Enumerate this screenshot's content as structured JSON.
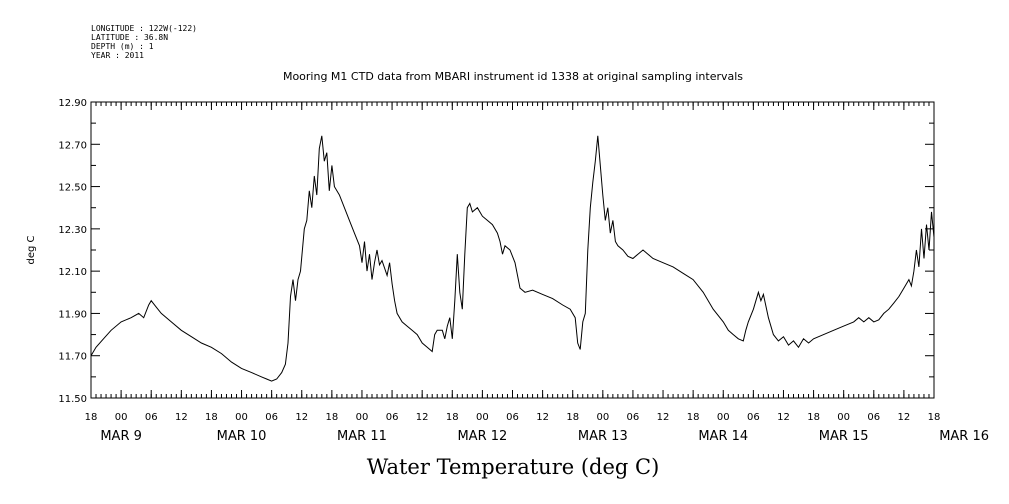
{
  "header": {
    "meta_lines": [
      "LONGITUDE : 122W(-122)",
      "LATITUDE : 36.8N",
      "DEPTH (m) : 1",
      "YEAR : 2011"
    ]
  },
  "chart_data": {
    "type": "line",
    "title": "Mooring M1 CTD data from MBARI instrument id 1338 at original sampling intervals",
    "caption": "Water Temperature (deg C)",
    "ylabel": "deg C",
    "xlabel": "",
    "ylim": [
      11.5,
      12.9
    ],
    "yticks": [
      "11.50",
      "11.70",
      "11.90",
      "12.10",
      "12.30",
      "12.50",
      "12.70",
      "12.90"
    ],
    "xlim": [
      "2011-03-08T18:00",
      "2011-03-15T18:00"
    ],
    "x_hour_ticks": [
      "18",
      "00",
      "06",
      "12",
      "18",
      "00",
      "06",
      "12",
      "18",
      "00",
      "06",
      "12",
      "18",
      "00",
      "06",
      "12",
      "18",
      "00",
      "06",
      "12",
      "18",
      "00",
      "06",
      "12",
      "18",
      "00",
      "06",
      "12",
      "18"
    ],
    "x_day_labels": [
      "MAR  9",
      "MAR 10",
      "MAR 11",
      "MAR 12",
      "MAR 13",
      "MAR 14",
      "MAR 15",
      "MAR 16"
    ],
    "grid": false,
    "legend": "none",
    "series": [
      {
        "color": "#000000",
        "points": [
          [
            "2011-03-08T18:00",
            11.7
          ],
          [
            "2011-03-08T19:00",
            11.74
          ],
          [
            "2011-03-08T20:30",
            11.78
          ],
          [
            "2011-03-08T22:00",
            11.82
          ],
          [
            "2011-03-09T00:00",
            11.86
          ],
          [
            "2011-03-09T02:00",
            11.88
          ],
          [
            "2011-03-09T03:30",
            11.9
          ],
          [
            "2011-03-09T04:30",
            11.88
          ],
          [
            "2011-03-09T05:30",
            11.94
          ],
          [
            "2011-03-09T06:00",
            11.96
          ],
          [
            "2011-03-09T07:00",
            11.93
          ],
          [
            "2011-03-09T08:00",
            11.9
          ],
          [
            "2011-03-09T10:00",
            11.86
          ],
          [
            "2011-03-09T12:00",
            11.82
          ],
          [
            "2011-03-09T14:00",
            11.79
          ],
          [
            "2011-03-09T16:00",
            11.76
          ],
          [
            "2011-03-09T18:00",
            11.74
          ],
          [
            "2011-03-09T20:00",
            11.71
          ],
          [
            "2011-03-09T22:00",
            11.67
          ],
          [
            "2011-03-10T00:00",
            11.64
          ],
          [
            "2011-03-10T02:00",
            11.62
          ],
          [
            "2011-03-10T04:00",
            11.6
          ],
          [
            "2011-03-10T05:00",
            11.59
          ],
          [
            "2011-03-10T06:00",
            11.58
          ],
          [
            "2011-03-10T07:00",
            11.59
          ],
          [
            "2011-03-10T08:00",
            11.62
          ],
          [
            "2011-03-10T08:45",
            11.66
          ],
          [
            "2011-03-10T09:15",
            11.76
          ],
          [
            "2011-03-10T09:45",
            11.98
          ],
          [
            "2011-03-10T10:15",
            12.06
          ],
          [
            "2011-03-10T10:45",
            11.96
          ],
          [
            "2011-03-10T11:15",
            12.06
          ],
          [
            "2011-03-10T11:45",
            12.1
          ],
          [
            "2011-03-10T12:30",
            12.3
          ],
          [
            "2011-03-10T13:00",
            12.34
          ],
          [
            "2011-03-10T13:30",
            12.48
          ],
          [
            "2011-03-10T14:00",
            12.4
          ],
          [
            "2011-03-10T14:30",
            12.55
          ],
          [
            "2011-03-10T15:00",
            12.46
          ],
          [
            "2011-03-10T15:30",
            12.68
          ],
          [
            "2011-03-10T16:00",
            12.74
          ],
          [
            "2011-03-10T16:30",
            12.62
          ],
          [
            "2011-03-10T17:00",
            12.66
          ],
          [
            "2011-03-10T17:30",
            12.48
          ],
          [
            "2011-03-10T18:00",
            12.6
          ],
          [
            "2011-03-10T18:30",
            12.5
          ],
          [
            "2011-03-10T19:30",
            12.46
          ],
          [
            "2011-03-10T20:30",
            12.4
          ],
          [
            "2011-03-10T21:30",
            12.34
          ],
          [
            "2011-03-10T22:30",
            12.28
          ],
          [
            "2011-03-10T23:30",
            12.22
          ],
          [
            "2011-03-11T00:00",
            12.14
          ],
          [
            "2011-03-11T00:30",
            12.24
          ],
          [
            "2011-03-11T01:00",
            12.1
          ],
          [
            "2011-03-11T01:30",
            12.18
          ],
          [
            "2011-03-11T02:00",
            12.06
          ],
          [
            "2011-03-11T02:30",
            12.14
          ],
          [
            "2011-03-11T03:00",
            12.2
          ],
          [
            "2011-03-11T03:30",
            12.13
          ],
          [
            "2011-03-11T04:00",
            12.15
          ],
          [
            "2011-03-11T05:00",
            12.08
          ],
          [
            "2011-03-11T05:30",
            12.14
          ],
          [
            "2011-03-11T06:00",
            12.04
          ],
          [
            "2011-03-11T06:30",
            11.96
          ],
          [
            "2011-03-11T07:00",
            11.9
          ],
          [
            "2011-03-11T08:00",
            11.86
          ],
          [
            "2011-03-11T09:00",
            11.84
          ],
          [
            "2011-03-11T10:00",
            11.82
          ],
          [
            "2011-03-11T11:00",
            11.8
          ],
          [
            "2011-03-11T12:00",
            11.76
          ],
          [
            "2011-03-11T13:00",
            11.74
          ],
          [
            "2011-03-11T14:00",
            11.72
          ],
          [
            "2011-03-11T14:30",
            11.8
          ],
          [
            "2011-03-11T15:00",
            11.82
          ],
          [
            "2011-03-11T16:00",
            11.82
          ],
          [
            "2011-03-11T16:30",
            11.78
          ],
          [
            "2011-03-11T17:00",
            11.84
          ],
          [
            "2011-03-11T17:30",
            11.88
          ],
          [
            "2011-03-11T18:00",
            11.78
          ],
          [
            "2011-03-11T18:30",
            11.96
          ],
          [
            "2011-03-11T19:00",
            12.18
          ],
          [
            "2011-03-11T19:30",
            12.0
          ],
          [
            "2011-03-11T20:00",
            11.92
          ],
          [
            "2011-03-11T20:30",
            12.18
          ],
          [
            "2011-03-11T21:00",
            12.4
          ],
          [
            "2011-03-11T21:30",
            12.42
          ],
          [
            "2011-03-11T22:00",
            12.38
          ],
          [
            "2011-03-11T23:00",
            12.4
          ],
          [
            "2011-03-12T00:00",
            12.36
          ],
          [
            "2011-03-12T01:00",
            12.34
          ],
          [
            "2011-03-12T02:00",
            12.32
          ],
          [
            "2011-03-12T03:00",
            12.28
          ],
          [
            "2011-03-12T03:30",
            12.24
          ],
          [
            "2011-03-12T04:00",
            12.18
          ],
          [
            "2011-03-12T04:30",
            12.22
          ],
          [
            "2011-03-12T05:30",
            12.2
          ],
          [
            "2011-03-12T06:30",
            12.14
          ],
          [
            "2011-03-12T07:30",
            12.02
          ],
          [
            "2011-03-12T08:30",
            12.0
          ],
          [
            "2011-03-12T10:00",
            12.01
          ],
          [
            "2011-03-12T12:00",
            11.99
          ],
          [
            "2011-03-12T14:00",
            11.97
          ],
          [
            "2011-03-12T16:00",
            11.94
          ],
          [
            "2011-03-12T17:30",
            11.92
          ],
          [
            "2011-03-12T18:30",
            11.88
          ],
          [
            "2011-03-12T19:00",
            11.76
          ],
          [
            "2011-03-12T19:30",
            11.73
          ],
          [
            "2011-03-12T20:00",
            11.86
          ],
          [
            "2011-03-12T20:30",
            11.9
          ],
          [
            "2011-03-12T21:00",
            12.2
          ],
          [
            "2011-03-12T21:30",
            12.4
          ],
          [
            "2011-03-12T22:00",
            12.52
          ],
          [
            "2011-03-12T22:30",
            12.62
          ],
          [
            "2011-03-12T23:00",
            12.74
          ],
          [
            "2011-03-12T23:30",
            12.6
          ],
          [
            "2011-03-13T00:00",
            12.46
          ],
          [
            "2011-03-13T00:30",
            12.34
          ],
          [
            "2011-03-13T01:00",
            12.4
          ],
          [
            "2011-03-13T01:30",
            12.28
          ],
          [
            "2011-03-13T02:00",
            12.34
          ],
          [
            "2011-03-13T02:30",
            12.24
          ],
          [
            "2011-03-13T03:00",
            12.22
          ],
          [
            "2011-03-13T04:00",
            12.2
          ],
          [
            "2011-03-13T05:00",
            12.17
          ],
          [
            "2011-03-13T06:00",
            12.16
          ],
          [
            "2011-03-13T07:00",
            12.18
          ],
          [
            "2011-03-13T08:00",
            12.2
          ],
          [
            "2011-03-13T09:00",
            12.18
          ],
          [
            "2011-03-13T10:00",
            12.16
          ],
          [
            "2011-03-13T12:00",
            12.14
          ],
          [
            "2011-03-13T14:00",
            12.12
          ],
          [
            "2011-03-13T16:00",
            12.09
          ],
          [
            "2011-03-13T18:00",
            12.06
          ],
          [
            "2011-03-13T20:00",
            12.0
          ],
          [
            "2011-03-13T22:00",
            11.92
          ],
          [
            "2011-03-14T00:00",
            11.86
          ],
          [
            "2011-03-14T01:00",
            11.82
          ],
          [
            "2011-03-14T02:00",
            11.8
          ],
          [
            "2011-03-14T03:00",
            11.78
          ],
          [
            "2011-03-14T04:00",
            11.77
          ],
          [
            "2011-03-14T04:30",
            11.82
          ],
          [
            "2011-03-14T05:00",
            11.86
          ],
          [
            "2011-03-14T06:00",
            11.92
          ],
          [
            "2011-03-14T06:30",
            11.96
          ],
          [
            "2011-03-14T07:00",
            12.0
          ],
          [
            "2011-03-14T07:30",
            11.96
          ],
          [
            "2011-03-14T08:00",
            11.99
          ],
          [
            "2011-03-14T09:00",
            11.88
          ],
          [
            "2011-03-14T10:00",
            11.8
          ],
          [
            "2011-03-14T11:00",
            11.77
          ],
          [
            "2011-03-14T12:00",
            11.79
          ],
          [
            "2011-03-14T13:00",
            11.75
          ],
          [
            "2011-03-14T14:00",
            11.77
          ],
          [
            "2011-03-14T15:00",
            11.74
          ],
          [
            "2011-03-14T16:00",
            11.78
          ],
          [
            "2011-03-14T17:00",
            11.76
          ],
          [
            "2011-03-14T18:00",
            11.78
          ],
          [
            "2011-03-14T20:00",
            11.8
          ],
          [
            "2011-03-14T22:00",
            11.82
          ],
          [
            "2011-03-15T00:00",
            11.84
          ],
          [
            "2011-03-15T02:00",
            11.86
          ],
          [
            "2011-03-15T03:00",
            11.88
          ],
          [
            "2011-03-15T04:00",
            11.86
          ],
          [
            "2011-03-15T05:00",
            11.88
          ],
          [
            "2011-03-15T06:00",
            11.86
          ],
          [
            "2011-03-15T07:00",
            11.87
          ],
          [
            "2011-03-15T08:00",
            11.9
          ],
          [
            "2011-03-15T09:00",
            11.92
          ],
          [
            "2011-03-15T10:00",
            11.95
          ],
          [
            "2011-03-15T11:00",
            11.98
          ],
          [
            "2011-03-15T12:00",
            12.02
          ],
          [
            "2011-03-15T13:00",
            12.06
          ],
          [
            "2011-03-15T13:30",
            12.03
          ],
          [
            "2011-03-15T14:00",
            12.1
          ],
          [
            "2011-03-15T14:30",
            12.2
          ],
          [
            "2011-03-15T15:00",
            12.12
          ],
          [
            "2011-03-15T15:30",
            12.3
          ],
          [
            "2011-03-15T16:00",
            12.16
          ],
          [
            "2011-03-15T16:30",
            12.32
          ],
          [
            "2011-03-15T17:00",
            12.2
          ],
          [
            "2011-03-15T17:30",
            12.38
          ],
          [
            "2011-03-15T18:00",
            12.26
          ]
        ]
      }
    ]
  }
}
